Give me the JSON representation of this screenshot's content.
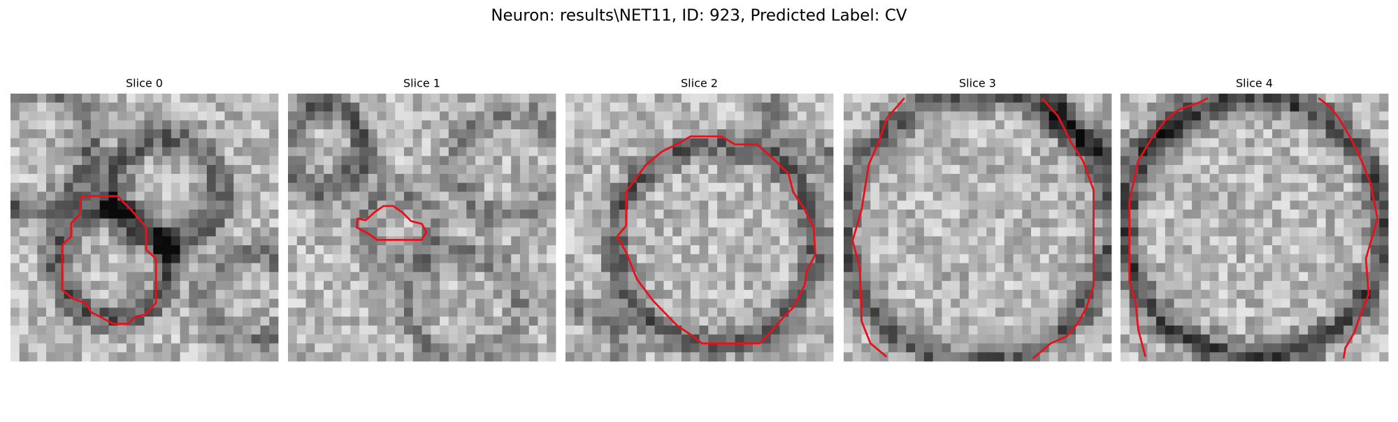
{
  "title": "Neuron: results\\NET11, ID: 923, Predicted Label: CV",
  "panels": [
    {
      "title": "Slice 0"
    },
    {
      "title": "Slice 1"
    },
    {
      "title": "Slice 2"
    },
    {
      "title": "Slice 3"
    },
    {
      "title": "Slice 4"
    }
  ]
}
